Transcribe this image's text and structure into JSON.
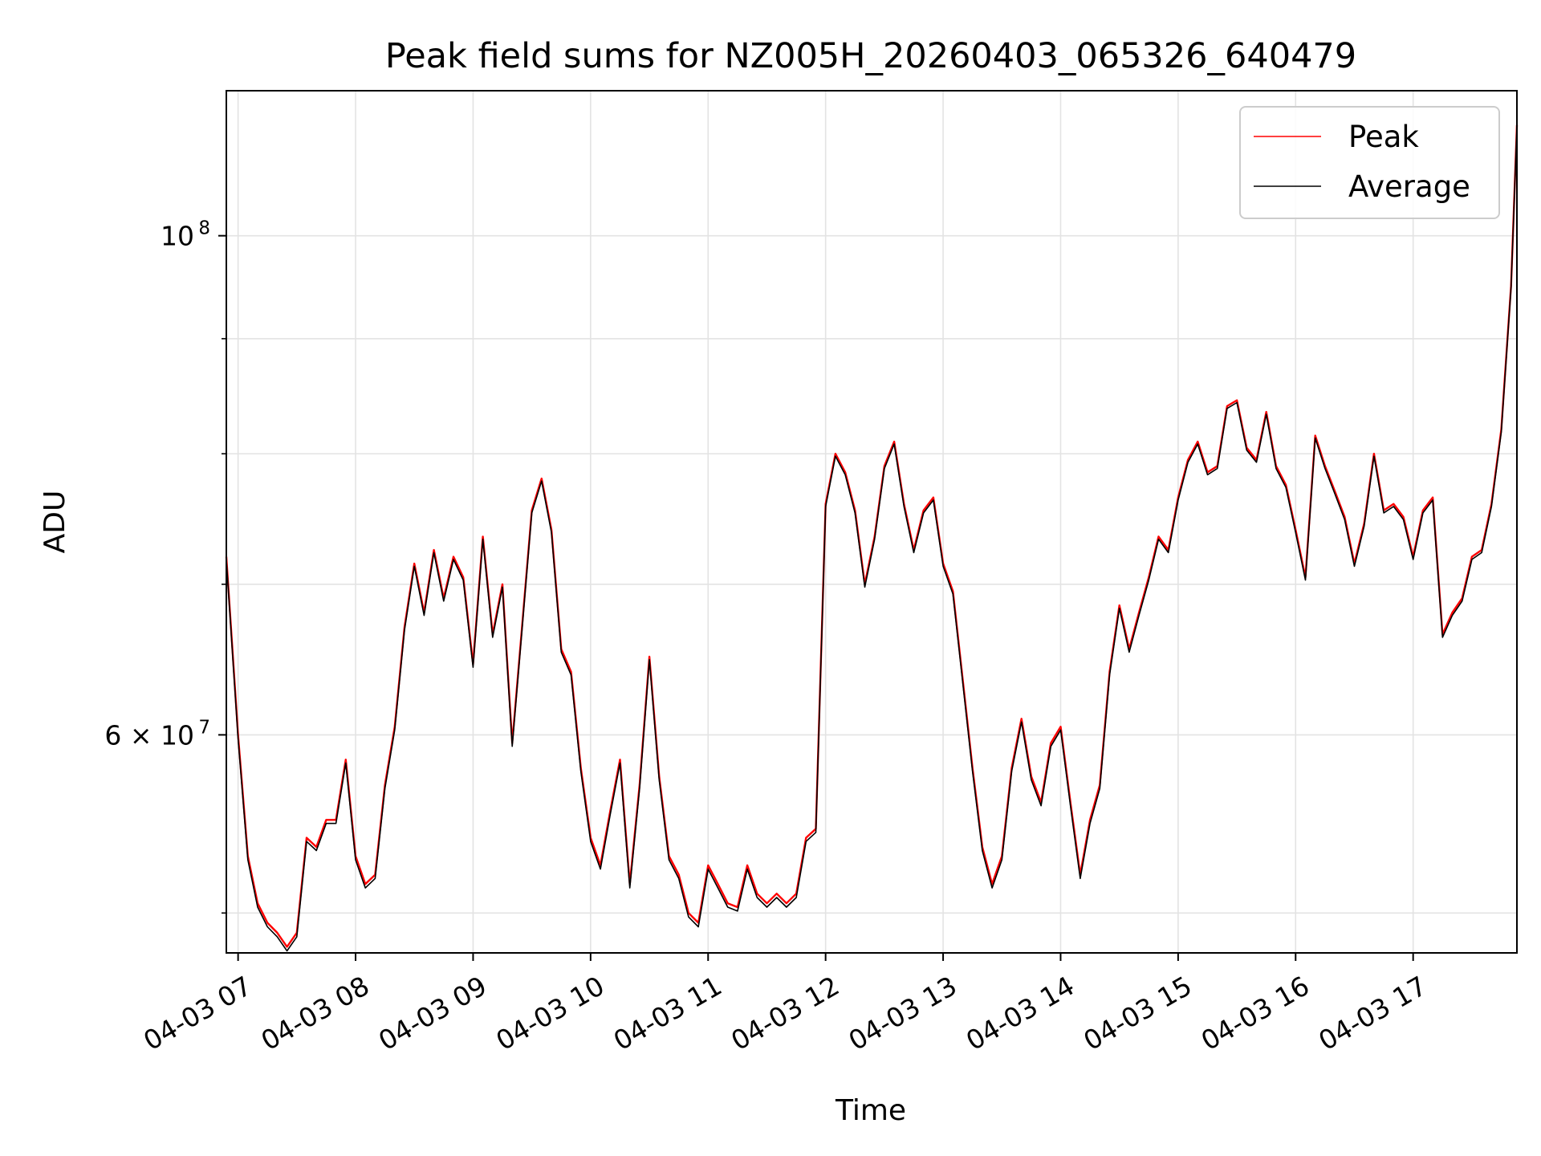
{
  "chart_data": {
    "type": "line",
    "title": "Peak field sums for NZ005H_20260403_065326_640479",
    "xlabel": "Time",
    "ylabel": "ADU",
    "yscale": "log",
    "ylim": [
      48000000,
      116000000
    ],
    "xlim": [
      "2026-04-03 06:54",
      "2026-04-03 17:53"
    ],
    "x_ticks": [
      "04-03 07",
      "04-03 08",
      "04-03 09",
      "04-03 10",
      "04-03 11",
      "04-03 12",
      "04-03 13",
      "04-03 14",
      "04-03 15",
      "04-03 16",
      "04-03 17"
    ],
    "y_major_ticks": [
      {
        "value": 60000000,
        "label": "6 × 10",
        "exp": "7"
      },
      {
        "value": 100000000,
        "label": "10",
        "exp": "8"
      }
    ],
    "y_minor_ticks": [
      50000000,
      70000000,
      80000000,
      90000000
    ],
    "grid": true,
    "legend_position": "top-right",
    "legend": [
      {
        "name": "Peak",
        "color": "#ff0000"
      },
      {
        "name": "Average",
        "color": "#000000"
      }
    ],
    "x": [
      "06:54",
      "07:00",
      "07:05",
      "07:10",
      "07:15",
      "07:20",
      "07:25",
      "07:30",
      "07:35",
      "07:40",
      "07:45",
      "07:50",
      "07:55",
      "08:00",
      "08:05",
      "08:10",
      "08:15",
      "08:20",
      "08:25",
      "08:30",
      "08:35",
      "08:40",
      "08:45",
      "08:50",
      "08:55",
      "09:00",
      "09:05",
      "09:10",
      "09:15",
      "09:20",
      "09:25",
      "09:30",
      "09:35",
      "09:40",
      "09:45",
      "09:50",
      "09:55",
      "10:00",
      "10:05",
      "10:10",
      "10:15",
      "10:20",
      "10:25",
      "10:30",
      "10:35",
      "10:40",
      "10:45",
      "10:50",
      "10:55",
      "11:00",
      "11:05",
      "11:10",
      "11:15",
      "11:20",
      "11:25",
      "11:30",
      "11:35",
      "11:40",
      "11:45",
      "11:50",
      "11:55",
      "12:00",
      "12:05",
      "12:10",
      "12:15",
      "12:20",
      "12:25",
      "12:30",
      "12:35",
      "12:40",
      "12:45",
      "12:50",
      "12:55",
      "13:00",
      "13:05",
      "13:10",
      "13:15",
      "13:20",
      "13:25",
      "13:30",
      "13:35",
      "13:40",
      "13:45",
      "13:50",
      "13:55",
      "14:00",
      "14:05",
      "14:10",
      "14:15",
      "14:20",
      "14:25",
      "14:30",
      "14:35",
      "14:40",
      "14:45",
      "14:50",
      "14:55",
      "15:00",
      "15:05",
      "15:10",
      "15:15",
      "15:20",
      "15:25",
      "15:30",
      "15:35",
      "15:40",
      "15:45",
      "15:50",
      "15:55",
      "16:00",
      "16:05",
      "16:10",
      "16:15",
      "16:20",
      "16:25",
      "16:30",
      "16:35",
      "16:40",
      "16:45",
      "16:50",
      "16:55",
      "17:00",
      "17:05",
      "17:10",
      "17:15",
      "17:20",
      "17:25",
      "17:30",
      "17:35",
      "17:40",
      "17:45",
      "17:50",
      "17:53"
    ],
    "series": [
      {
        "name": "Peak",
        "color": "#ff0000",
        "values": [
          72000000,
          60000000,
          53000000,
          50500000,
          49500000,
          49000000,
          48300000,
          49000000,
          54000000,
          53500000,
          55000000,
          55000000,
          58500000,
          53000000,
          51500000,
          52000000,
          57000000,
          60500000,
          67000000,
          71500000,
          68000000,
          72500000,
          69000000,
          72000000,
          70500000,
          64500000,
          73500000,
          66500000,
          70000000,
          59500000,
          67000000,
          75500000,
          78000000,
          74000000,
          65500000,
          64000000,
          58000000,
          54000000,
          52500000,
          55500000,
          58500000,
          51500000,
          57000000,
          65000000,
          57500000,
          53000000,
          52000000,
          50000000,
          49500000,
          52500000,
          51500000,
          50500000,
          50300000,
          52500000,
          51000000,
          50500000,
          51000000,
          50500000,
          51000000,
          54000000,
          54500000,
          76000000,
          80000000,
          78500000,
          75500000,
          70000000,
          73500000,
          79000000,
          81000000,
          76000000,
          72500000,
          75500000,
          76500000,
          71500000,
          69500000,
          63500000,
          58000000,
          53500000,
          51500000,
          53000000,
          58000000,
          61000000,
          57500000,
          56000000,
          59500000,
          60500000,
          56000000,
          52000000,
          55000000,
          57000000,
          64000000,
          68500000,
          65500000,
          68000000,
          70500000,
          73500000,
          72500000,
          76500000,
          79500000,
          81000000,
          78500000,
          79000000,
          84000000,
          84500000,
          80500000,
          79500000,
          83500000,
          79000000,
          77500000,
          74000000,
          70500000,
          81500000,
          79000000,
          77000000,
          75000000,
          71500000,
          74500000,
          80000000,
          75500000,
          76000000,
          75000000,
          72000000,
          75500000,
          76500000,
          66500000,
          68000000,
          69000000,
          72000000,
          72500000,
          76000000,
          82000000,
          95000000,
          112000000
        ]
      },
      {
        "name": "Average",
        "color": "#000000",
        "values": [
          71800000,
          59800000,
          52800000,
          50300000,
          49300000,
          48800000,
          48100000,
          48800000,
          53800000,
          53300000,
          54800000,
          54800000,
          58300000,
          52800000,
          51300000,
          51800000,
          56800000,
          60300000,
          66800000,
          71300000,
          67800000,
          72300000,
          68800000,
          71800000,
          70300000,
          64300000,
          73300000,
          66300000,
          69800000,
          59300000,
          66800000,
          75300000,
          77800000,
          73800000,
          65300000,
          63800000,
          57800000,
          53800000,
          52300000,
          55300000,
          58300000,
          51300000,
          56800000,
          64800000,
          57300000,
          52800000,
          51800000,
          49800000,
          49300000,
          52300000,
          51300000,
          50300000,
          50100000,
          52300000,
          50800000,
          50300000,
          50800000,
          50300000,
          50800000,
          53800000,
          54300000,
          75800000,
          79800000,
          78300000,
          75300000,
          69800000,
          73300000,
          78800000,
          80800000,
          75800000,
          72300000,
          75300000,
          76300000,
          71300000,
          69300000,
          63300000,
          57800000,
          53300000,
          51300000,
          52800000,
          57800000,
          60800000,
          57300000,
          55800000,
          59300000,
          60300000,
          55800000,
          51800000,
          54800000,
          56800000,
          63800000,
          68300000,
          65300000,
          67800000,
          70300000,
          73300000,
          72300000,
          76300000,
          79300000,
          80800000,
          78300000,
          78800000,
          83800000,
          84300000,
          80300000,
          79300000,
          83300000,
          78800000,
          77300000,
          73800000,
          70300000,
          81300000,
          78800000,
          76800000,
          74800000,
          71300000,
          74300000,
          79800000,
          75300000,
          75800000,
          74800000,
          71800000,
          75300000,
          76300000,
          66300000,
          67800000,
          68800000,
          71800000,
          72300000,
          75800000,
          81800000,
          94800000,
          111800000
        ]
      }
    ]
  }
}
